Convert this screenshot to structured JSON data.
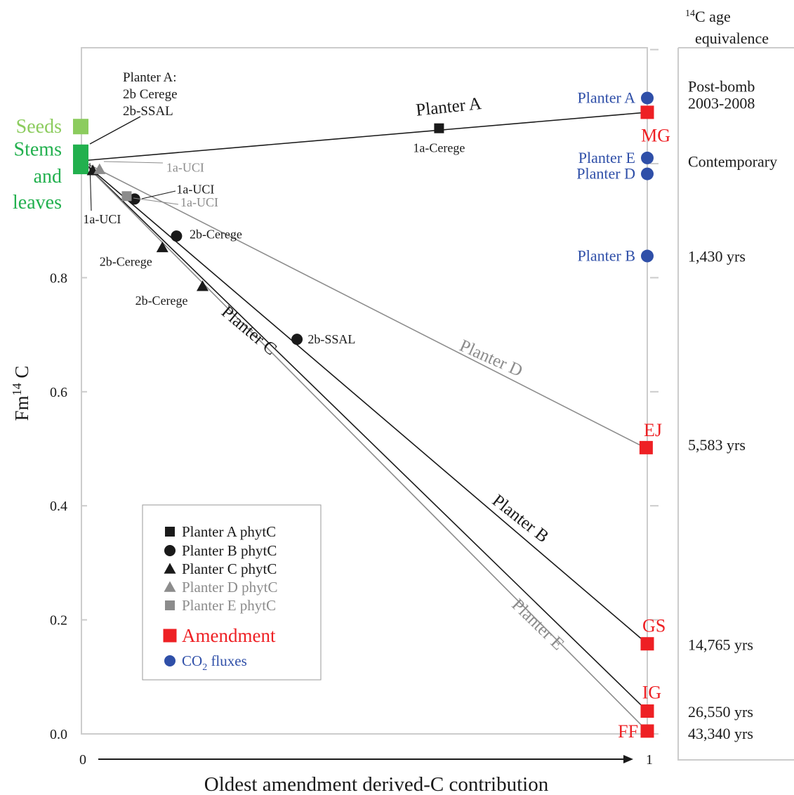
{
  "chart_data": {
    "type": "scatter",
    "xlabel": "Oldest amendment derived-C contribution",
    "ylabel_main": "Fm",
    "ylabel_sup": "14",
    "ylabel_tail": " C",
    "x_ticks": [
      "0",
      "1"
    ],
    "y_ticks": [
      {
        "v": 0.0,
        "label": "0.0"
      },
      {
        "v": 0.2,
        "label": "0.2"
      },
      {
        "v": 0.4,
        "label": "0.4"
      },
      {
        "v": 0.6,
        "label": "0.6"
      },
      {
        "v": 0.8,
        "label": "0.8"
      }
    ],
    "xlim": [
      0,
      1
    ],
    "ylim": [
      0,
      1.2
    ],
    "age_header": {
      "sup": "14",
      "line1": "C age",
      "line2": "equivalence"
    },
    "age_labels": [
      {
        "y": 1.135,
        "text": "Post-bomb"
      },
      {
        "y": 1.105,
        "text": "2003-2008"
      },
      {
        "y": 1.003,
        "text": "Contemporary"
      },
      {
        "y": 0.837,
        "text": "1,430 yrs"
      },
      {
        "y": 0.506,
        "text": "5,583 yrs"
      },
      {
        "y": 0.156,
        "text": "14,765 yrs"
      },
      {
        "y": 0.038,
        "text": "26,550 yrs"
      },
      {
        "y": 0.0,
        "text": "43,340 yrs"
      }
    ],
    "lines": [
      {
        "name": "Planter A",
        "color": "#1a1a1a",
        "from": [
          0,
          1.005
        ],
        "to": [
          1,
          1.09
        ],
        "label_at": [
          0.65,
          1.09
        ],
        "angle": -6
      },
      {
        "name": "Planter B",
        "color": "#1a1a1a",
        "from": [
          0,
          1.005
        ],
        "to": [
          1,
          0.158
        ],
        "label_at": [
          0.77,
          0.37
        ],
        "angle": 38
      },
      {
        "name": "Planter C",
        "color": "#1a1a1a",
        "from": [
          0,
          1.005
        ],
        "to": [
          1,
          0.04
        ],
        "label_at": [
          0.29,
          0.7
        ],
        "angle": 40
      },
      {
        "name": "Planter D",
        "color": "#8c8c8c",
        "from": [
          0,
          1.005
        ],
        "to": [
          1,
          0.5
        ],
        "label_at": [
          0.72,
          0.65
        ],
        "angle": 24
      },
      {
        "name": "Planter E",
        "color": "#8c8c8c",
        "from": [
          0,
          1.005
        ],
        "to": [
          1,
          0.005
        ],
        "label_at": [
          0.8,
          0.185
        ],
        "angle": 44
      }
    ],
    "phyt_points": [
      {
        "series": "Planter A phytC",
        "shape": "square",
        "color": "#1a1a1a",
        "x": 0.632,
        "y": 1.062,
        "label": "1a-Cerege",
        "lx": 0.632,
        "ly": 1.028,
        "anchor": "middle",
        "lcolor": "#1a1a1a"
      },
      {
        "series": "Planter B phytC",
        "shape": "circle",
        "color": "#1a1a1a",
        "x": 0.094,
        "y": 0.938,
        "label": "1a-UCI",
        "lx": 0.168,
        "ly": 0.955,
        "anchor": "start",
        "lcolor": "#1a1a1a"
      },
      {
        "series": "Planter B phytC",
        "shape": "circle",
        "color": "#1a1a1a",
        "x": 0.168,
        "y": 0.873,
        "label": "2b-Cerege",
        "lx": 0.191,
        "ly": 0.876,
        "anchor": "start",
        "lcolor": "#1a1a1a"
      },
      {
        "series": "Planter B phytC",
        "shape": "circle",
        "color": "#1a1a1a",
        "x": 0.381,
        "y": 0.692,
        "label": "2b-SSAL",
        "lx": 0.4,
        "ly": 0.692,
        "anchor": "start",
        "lcolor": "#1a1a1a"
      },
      {
        "series": "Planter C phytC",
        "shape": "triangle",
        "color": "#1a1a1a",
        "x": 0.02,
        "y": 0.988,
        "label": "1a-UCI",
        "lx": 0.003,
        "ly": 0.903,
        "anchor": "start",
        "lcolor": "#1a1a1a"
      },
      {
        "series": "Planter C phytC",
        "shape": "triangle",
        "color": "#1a1a1a",
        "x": 0.143,
        "y": 0.853,
        "label": "2b-Cerege",
        "lx": 0.032,
        "ly": 0.828,
        "anchor": "start",
        "lcolor": "#1a1a1a"
      },
      {
        "series": "Planter C phytC",
        "shape": "triangle",
        "color": "#1a1a1a",
        "x": 0.214,
        "y": 0.785,
        "label": "2b-Cerege",
        "lx": 0.095,
        "ly": 0.76,
        "anchor": "start",
        "lcolor": "#1a1a1a"
      },
      {
        "series": "Planter D phytC",
        "shape": "triangle",
        "color": "#8c8c8c",
        "x": 0.032,
        "y": 0.99,
        "label": "1a-UCI",
        "lx": 0.15,
        "ly": 0.993,
        "anchor": "start",
        "lcolor": "#8c8c8c"
      },
      {
        "series": "Planter E phytC",
        "shape": "square",
        "color": "#8c8c8c",
        "x": 0.08,
        "y": 0.943,
        "label": "1a-UCI",
        "lx": 0.175,
        "ly": 0.932,
        "anchor": "start",
        "lcolor": "#8c8c8c"
      }
    ],
    "amendments": [
      {
        "name": "MG",
        "x": 1.0,
        "y": 1.09,
        "lx": 1.015,
        "ly": 1.05
      },
      {
        "name": "EJ",
        "x": 0.998,
        "y": 0.502,
        "lx": 1.01,
        "ly": 0.533
      },
      {
        "name": "GS",
        "x": 1.0,
        "y": 0.158,
        "lx": 1.012,
        "ly": 0.19
      },
      {
        "name": "IG",
        "x": 1.0,
        "y": 0.04,
        "lx": 1.008,
        "ly": 0.073
      },
      {
        "name": "FF",
        "x": 1.0,
        "y": 0.005,
        "lx": 0.966,
        "ly": 0.005
      }
    ],
    "co2_fluxes": [
      {
        "name": "Planter A",
        "x": 1.0,
        "y": 1.115
      },
      {
        "name": "Planter E",
        "x": 1.0,
        "y": 1.01
      },
      {
        "name": "Planter D",
        "x": 1.0,
        "y": 0.982
      },
      {
        "name": "Planter B",
        "x": 1.0,
        "y": 0.838
      }
    ],
    "plant_parts": [
      {
        "name": "Seeds",
        "color": "#8ccc5e",
        "y": 1.065
      },
      {
        "name": "Stems",
        "color": "#22b04e",
        "y": 1.02
      },
      {
        "name": "leaves",
        "color": "#22b04e",
        "y": 0.995
      }
    ],
    "left_labels": [
      {
        "text": "Seeds",
        "color": "#8ccc5e",
        "y": 1.065
      },
      {
        "text": "Stems",
        "color": "#22b04e",
        "y": 1.025
      },
      {
        "text": "and",
        "color": "#22b04e",
        "y": 0.978
      },
      {
        "text": "leaves",
        "color": "#22b04e",
        "y": 0.932
      }
    ],
    "planterA_note": [
      "Planter A:",
      "2b Cerege",
      "2b-SSAL"
    ],
    "legend": [
      {
        "shape": "square",
        "color": "#1a1a1a",
        "text": "Planter A phytC",
        "tcolor": "#1a1a1a"
      },
      {
        "shape": "circle",
        "color": "#1a1a1a",
        "text": "Planter B phytC",
        "tcolor": "#1a1a1a"
      },
      {
        "shape": "triangle",
        "color": "#1a1a1a",
        "text": "Planter C phytC",
        "tcolor": "#1a1a1a"
      },
      {
        "shape": "triangle",
        "color": "#8c8c8c",
        "text": "Planter D phytC",
        "tcolor": "#8c8c8c"
      },
      {
        "shape": "square",
        "color": "#8c8c8c",
        "text": "Planter E phytC",
        "tcolor": "#8c8c8c"
      },
      {
        "shape": "bigsquare",
        "color": "#ee2024",
        "text": "Amendment",
        "tcolor": "#ee2024"
      },
      {
        "shape": "circle",
        "color": "#2f4fa8",
        "text": "CO",
        "sub": "2",
        "tail": " fluxes",
        "tcolor": "#2f4fa8"
      }
    ],
    "colors": {
      "amendment": "#ee2024",
      "co2": "#2f4fa8",
      "frame": "#cccccc",
      "dark": "#1a1a1a",
      "grey": "#8c8c8c"
    }
  }
}
